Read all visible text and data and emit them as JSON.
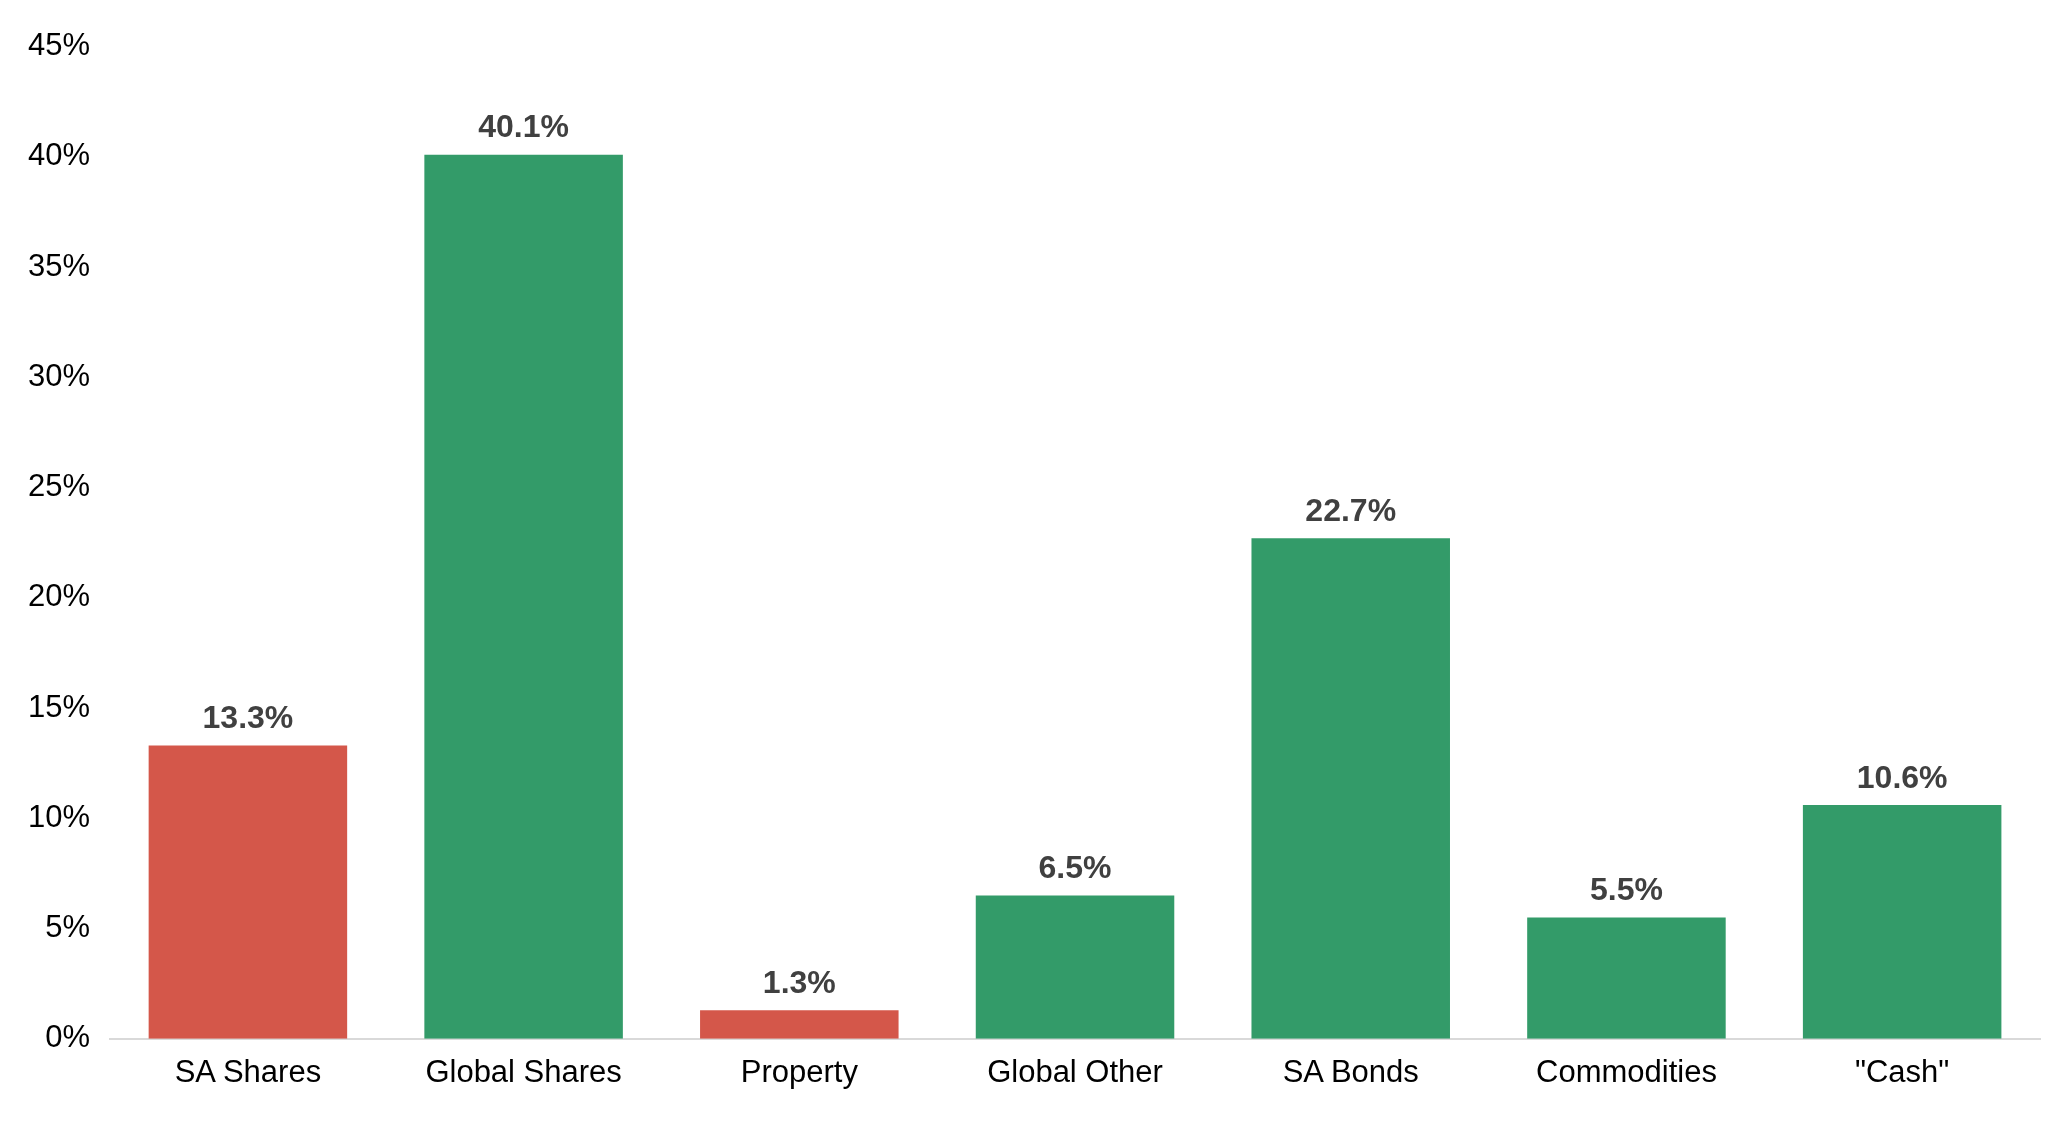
{
  "chart_data": {
    "type": "bar",
    "categories": [
      "SA Shares",
      "Global Shares",
      "Property",
      "Global Other",
      "SA Bonds",
      "Commodities",
      "\"Cash\""
    ],
    "values": [
      13.3,
      40.1,
      1.3,
      6.5,
      22.7,
      5.5,
      10.6
    ],
    "colors": [
      "#d4574a",
      "#339b69",
      "#d4574a",
      "#339b69",
      "#339b69",
      "#339b69",
      "#339b69"
    ],
    "value_labels": [
      "13.3%",
      "40.1%",
      "1.3%",
      "6.5%",
      "22.7%",
      "5.5%",
      "10.6%"
    ],
    "ylim": [
      0,
      45
    ],
    "yticks": [
      {
        "value": 0,
        "label": "0%"
      },
      {
        "value": 5,
        "label": "5%"
      },
      {
        "value": 10,
        "label": "10%"
      },
      {
        "value": 15,
        "label": "15%"
      },
      {
        "value": 20,
        "label": "20%"
      },
      {
        "value": 25,
        "label": "25%"
      },
      {
        "value": 30,
        "label": "30%"
      },
      {
        "value": 35,
        "label": "35%"
      },
      {
        "value": 40,
        "label": "40%"
      },
      {
        "value": 45,
        "label": "45%"
      }
    ],
    "grid": false,
    "legend": false
  }
}
